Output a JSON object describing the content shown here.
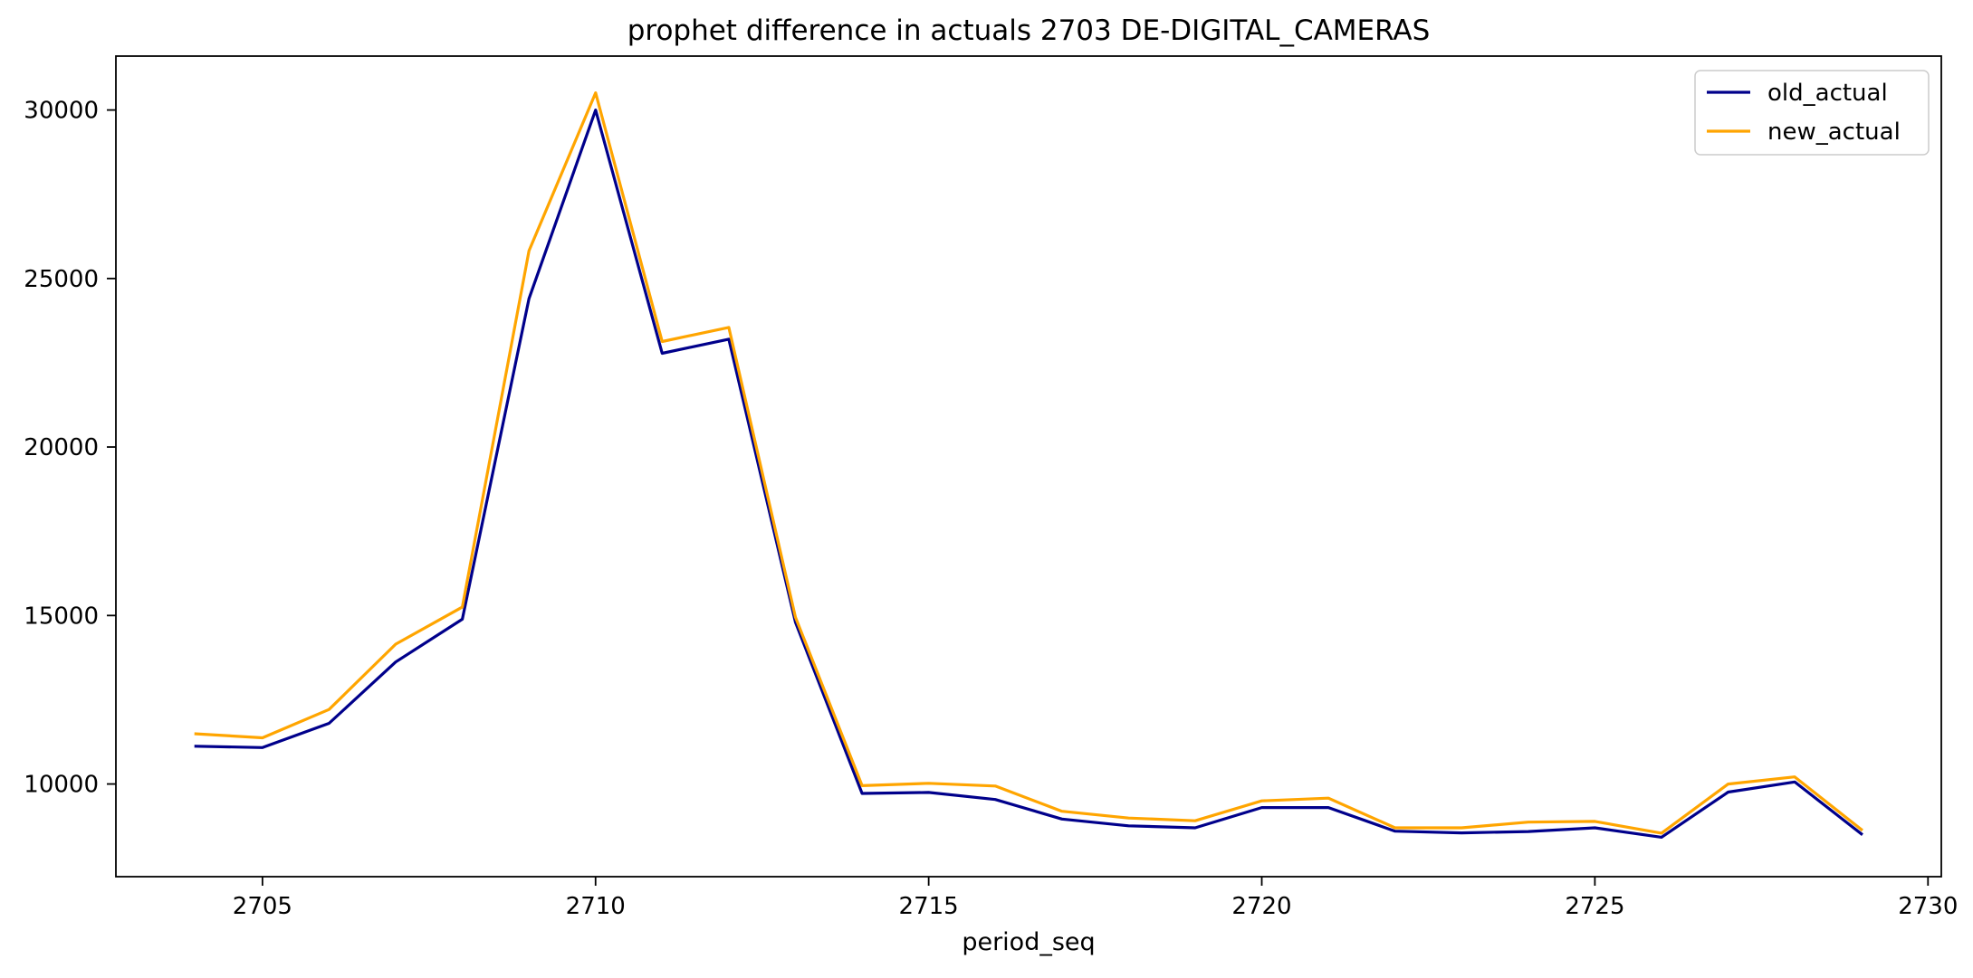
{
  "chart_data": {
    "type": "line",
    "title": "prophet difference in actuals 2703 DE-DIGITAL_CAMERAS",
    "xlabel": "period_seq",
    "ylabel": "",
    "xlim": [
      2702.8,
      2730.2
    ],
    "ylim": [
      7250,
      31600
    ],
    "xticks": [
      2705,
      2710,
      2715,
      2720,
      2725,
      2730
    ],
    "yticks": [
      10000,
      15000,
      20000,
      25000,
      30000
    ],
    "grid": false,
    "legend": "top-right",
    "x": [
      2704,
      2705,
      2706,
      2707,
      2708,
      2709,
      2710,
      2711,
      2712,
      2713,
      2714,
      2715,
      2716,
      2717,
      2718,
      2719,
      2720,
      2721,
      2722,
      2723,
      2724,
      2725,
      2726,
      2727,
      2728,
      2729
    ],
    "series": [
      {
        "name": "old_actual",
        "color": "#00008b",
        "values": [
          11120,
          11080,
          11800,
          13620,
          14890,
          24400,
          30000,
          22780,
          23200,
          14800,
          9720,
          9750,
          9540,
          8960,
          8760,
          8700,
          9300,
          9300,
          8600,
          8550,
          8590,
          8700,
          8420,
          9760,
          10060,
          8520
        ]
      },
      {
        "name": "new_actual",
        "color": "#ffa500",
        "values": [
          11490,
          11370,
          12210,
          14150,
          15250,
          25820,
          30510,
          23130,
          23550,
          14950,
          9950,
          10020,
          9940,
          9190,
          8990,
          8910,
          9500,
          9580,
          8700,
          8700,
          8870,
          8890,
          8540,
          10000,
          10210,
          8650
        ]
      }
    ]
  }
}
